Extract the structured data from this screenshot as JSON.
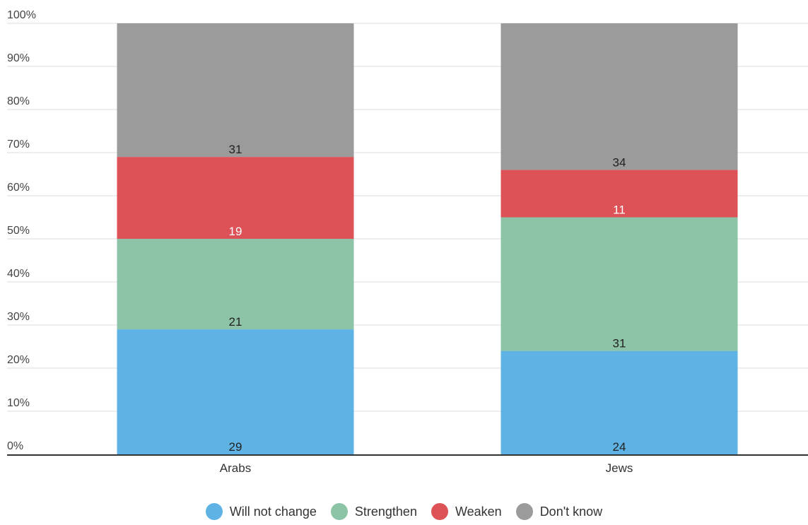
{
  "chart_data": {
    "type": "bar",
    "stacked": true,
    "categories": [
      "Arabs",
      "Jews"
    ],
    "series": [
      {
        "name": "Will not change",
        "values": [
          29,
          24
        ],
        "color": "#5eb3e4"
      },
      {
        "name": "Strengthen",
        "values": [
          21,
          31
        ],
        "color": "#8dc3a7"
      },
      {
        "name": "Weaken",
        "values": [
          19,
          11
        ],
        "color": "#dc5257"
      },
      {
        "name": "Don't know",
        "values": [
          31,
          34
        ],
        "color": "#9b9b9b"
      }
    ],
    "ylim": [
      0,
      100
    ],
    "yticks": [
      "0%",
      "10%",
      "20%",
      "30%",
      "40%",
      "50%",
      "60%",
      "70%",
      "80%",
      "90%",
      "100%"
    ],
    "grid": true,
    "legend": "bottom"
  }
}
